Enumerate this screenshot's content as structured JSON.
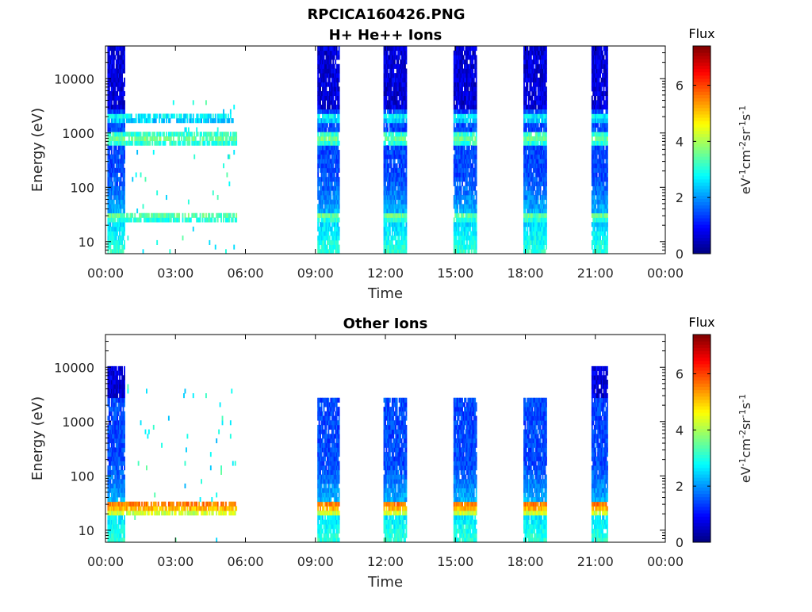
{
  "figure_title": "RPCICA160426.PNG",
  "chart_data": [
    {
      "type": "heatmap",
      "title": "H+ He++ Ions",
      "xlabel": "Time",
      "ylabel": "Energy (eV)",
      "x_ticks": [
        "00:00",
        "03:00",
        "06:00",
        "09:00",
        "12:00",
        "15:00",
        "18:00",
        "21:00",
        "00:00"
      ],
      "y_scale": "log",
      "ylim": [
        6,
        40000
      ],
      "y_ticks": [
        "10",
        "100",
        "1000",
        "10000"
      ],
      "grid": false,
      "colorbar": {
        "title": "Flux",
        "label": "eV-1cm-2sr-1s-1",
        "label_parts": [
          [
            "eV",
            ""
          ],
          [
            "-1",
            "sup"
          ],
          [
            "cm",
            ""
          ],
          [
            "-2",
            "sup"
          ],
          [
            "sr",
            ""
          ],
          [
            "-1",
            "sup"
          ],
          [
            "s",
            ""
          ],
          [
            "-1",
            "sup"
          ]
        ],
        "range": [
          0,
          7.4
        ],
        "ticks": [
          "0",
          "2",
          "4",
          "6"
        ],
        "colormap": "jet"
      },
      "segments": [
        {
          "t_start": "00:05",
          "t_end": "00:50",
          "emax": 40000,
          "mode": "full"
        },
        {
          "t_start": "00:50",
          "t_end": "05:35",
          "emax": 5000,
          "mode": "sparse"
        },
        {
          "t_start": "09:05",
          "t_end": "10:00",
          "emax": 40000,
          "mode": "full"
        },
        {
          "t_start": "11:55",
          "t_end": "12:55",
          "emax": 40000,
          "mode": "full"
        },
        {
          "t_start": "14:55",
          "t_end": "15:55",
          "emax": 40000,
          "mode": "full"
        },
        {
          "t_start": "17:55",
          "t_end": "18:55",
          "emax": 40000,
          "mode": "full"
        },
        {
          "t_start": "20:50",
          "t_end": "21:30",
          "emax": 40000,
          "mode": "full"
        }
      ],
      "bands": [
        {
          "energy": 30,
          "level": 3.5
        },
        {
          "energy": 800,
          "level": 3.6
        },
        {
          "energy": 2000,
          "level": 2.8
        }
      ]
    },
    {
      "type": "heatmap",
      "title": "Other Ions",
      "xlabel": "Time",
      "ylabel": "Energy (eV)",
      "x_ticks": [
        "00:00",
        "03:00",
        "06:00",
        "09:00",
        "12:00",
        "15:00",
        "18:00",
        "21:00",
        "00:00"
      ],
      "y_scale": "log",
      "ylim": [
        6,
        40000
      ],
      "y_ticks": [
        "10",
        "100",
        "1000",
        "10000"
      ],
      "grid": false,
      "colorbar": {
        "title": "Flux",
        "label": "eV-1cm-2sr-1s-1",
        "label_parts": [
          [
            "eV",
            ""
          ],
          [
            "-1",
            "sup"
          ],
          [
            "cm",
            ""
          ],
          [
            "-2",
            "sup"
          ],
          [
            "sr",
            ""
          ],
          [
            "-1",
            "sup"
          ],
          [
            "s",
            ""
          ],
          [
            "-1",
            "sup"
          ]
        ],
        "range": [
          0,
          7.4
        ],
        "ticks": [
          "0",
          "2",
          "4",
          "6"
        ],
        "colormap": "jet"
      },
      "segments": [
        {
          "t_start": "00:05",
          "t_end": "00:50",
          "emax": 11000,
          "mode": "full"
        },
        {
          "t_start": "00:50",
          "t_end": "05:35",
          "emax": 5000,
          "mode": "sparse"
        },
        {
          "t_start": "09:05",
          "t_end": "10:00",
          "emax": 3000,
          "mode": "full"
        },
        {
          "t_start": "11:55",
          "t_end": "12:55",
          "emax": 3000,
          "mode": "full"
        },
        {
          "t_start": "14:55",
          "t_end": "15:55",
          "emax": 3000,
          "mode": "full"
        },
        {
          "t_start": "17:55",
          "t_end": "18:55",
          "emax": 3000,
          "mode": "full"
        },
        {
          "t_start": "20:50",
          "t_end": "21:30",
          "emax": 11000,
          "mode": "full"
        }
      ],
      "bands": [
        {
          "energy": 30,
          "level": 5.6
        },
        {
          "energy": 22,
          "level": 4.4
        }
      ]
    }
  ]
}
